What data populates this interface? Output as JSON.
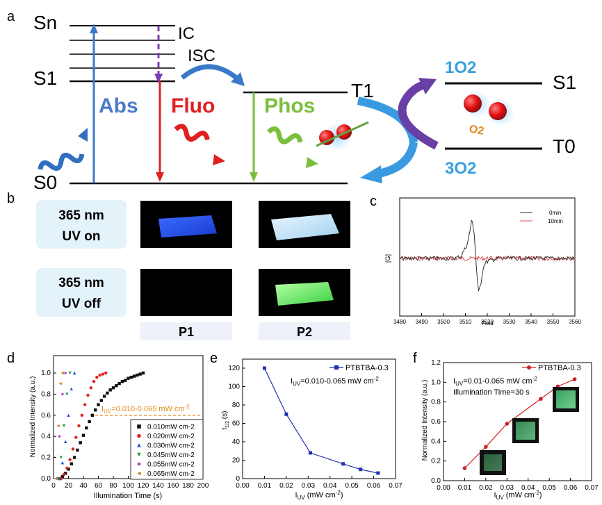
{
  "panel_labels": {
    "a": "a",
    "b": "b",
    "c": "c",
    "d": "d",
    "e": "e",
    "f": "f"
  },
  "jablonski": {
    "sn": "Sn",
    "s1": "S1",
    "s0": "S0",
    "t1": "T1",
    "ic": "IC",
    "isc": "ISC",
    "abs": "Abs",
    "fluo": "Fluo",
    "phos": "Phos",
    "singlet_o2": "1O2",
    "triplet_o2": "3O2",
    "o2_s1": "S1",
    "o2_t0": "T0",
    "o2_small": "O2",
    "colors": {
      "abs": "#4a7cc7",
      "fluo": "#e02020",
      "phos": "#7bbf3a",
      "ic": "#7b3fb5",
      "isc": "#3a78c9",
      "orange": "#e08a1a"
    }
  },
  "panel_b": {
    "row1_line1": "365 nm",
    "row1_line2": "UV  on",
    "row2_line1": "365 nm",
    "row2_line2": "UV off",
    "col1": "P1",
    "col2": "P2"
  },
  "chart_data": [
    {
      "panel": "c",
      "type": "line",
      "xlabel": "Field",
      "ylabel": "[G]",
      "xlim": [
        3480,
        3560
      ],
      "xticks": [
        "3480",
        "3490",
        "3500",
        "3510",
        "3520",
        "3530",
        "3540",
        "3550",
        "3560"
      ],
      "series": [
        {
          "name": "0min",
          "color": "#333333",
          "x": [
            3480,
            3505,
            3508,
            3511,
            3513,
            3514,
            3515,
            3516,
            3517,
            3518,
            3519,
            3521,
            3525,
            3560
          ],
          "y": [
            0,
            0,
            0.05,
            0.35,
            0.9,
            0.6,
            -0.2,
            -0.8,
            -0.6,
            -0.25,
            -0.1,
            -0.05,
            0,
            0
          ]
        },
        {
          "name": "10min",
          "color": "#e05050",
          "x": [
            3480,
            3560
          ],
          "y": [
            0,
            0
          ]
        }
      ],
      "legend": "top-right"
    },
    {
      "panel": "d",
      "type": "scatter",
      "xlabel": "Illumination Time (s)",
      "ylabel": "Normalized Intensity (a.u.)",
      "xlim": [
        0,
        200
      ],
      "ylim": [
        0,
        1.0
      ],
      "xticks": [
        "0",
        "20",
        "40",
        "60",
        "80",
        "100",
        "120",
        "140",
        "160",
        "180",
        "200"
      ],
      "yticks": [
        "0.0",
        "0.2",
        "0.4",
        "0.6",
        "0.8",
        "1.0"
      ],
      "annotation": "I",
      "annotation_sub": "UV",
      "annotation_rest": "=0.010-0.065 mW cm",
      "annotation_sup": "-2",
      "series": [
        {
          "name": "0.010mW cm-2",
          "color": "#111111",
          "marker": "square",
          "x": [
            8,
            12,
            16,
            20,
            24,
            28,
            32,
            36,
            40,
            44,
            48,
            52,
            56,
            60,
            64,
            68,
            72,
            76,
            80,
            84,
            88,
            92,
            96,
            100,
            104,
            108,
            112,
            116,
            120
          ],
          "y": [
            0,
            0.02,
            0.05,
            0.09,
            0.14,
            0.2,
            0.27,
            0.34,
            0.41,
            0.48,
            0.54,
            0.6,
            0.65,
            0.7,
            0.74,
            0.78,
            0.81,
            0.84,
            0.86,
            0.88,
            0.9,
            0.92,
            0.93,
            0.95,
            0.96,
            0.97,
            0.98,
            0.99,
            1.0
          ]
        },
        {
          "name": "0.020mW cm-2",
          "color": "#e02020",
          "marker": "circle",
          "x": [
            10,
            14,
            18,
            22,
            26,
            30,
            34,
            38,
            42,
            46,
            50,
            54,
            58,
            62,
            66,
            70
          ],
          "y": [
            0,
            0.04,
            0.1,
            0.18,
            0.28,
            0.39,
            0.5,
            0.6,
            0.7,
            0.79,
            0.86,
            0.92,
            0.96,
            0.98,
            0.99,
            1.0
          ]
        },
        {
          "name": "0.030mW cm-2",
          "color": "#2050d0",
          "marker": "triangle-up",
          "x": [
            8,
            12,
            16,
            20,
            24,
            28
          ],
          "y": [
            0,
            0.15,
            0.35,
            0.6,
            0.85,
            1.0
          ]
        },
        {
          "name": "0.045mW cm-2",
          "color": "#20a040",
          "marker": "triangle-down",
          "x": [
            6,
            10,
            14,
            18,
            22
          ],
          "y": [
            0,
            0.2,
            0.5,
            0.8,
            1.0
          ]
        },
        {
          "name": "0.055mW cm-2",
          "color": "#b040c0",
          "marker": "diamond",
          "x": [
            4,
            8,
            12,
            16
          ],
          "y": [
            0,
            0.4,
            0.8,
            1.0
          ]
        },
        {
          "name": "0.065mW cm-2",
          "color": "#d08020",
          "marker": "triangle-left",
          "x": [
            3,
            6,
            9,
            12
          ],
          "y": [
            0,
            0.5,
            0.9,
            1.0
          ]
        }
      ]
    },
    {
      "panel": "e",
      "type": "line",
      "xlabel": "I",
      "xlabel_sub": "UV",
      "xlabel_rest": " (mW cm",
      "xlabel_sup": "-2",
      "xlabel_end": ")",
      "ylabel": "t",
      "ylabel_sub": "1/2",
      "ylabel_rest": " (s)",
      "xlim": [
        0.0,
        0.07
      ],
      "ylim": [
        0,
        130
      ],
      "xticks": [
        "0.00",
        "0.01",
        "0.02",
        "0.03",
        "0.04",
        "0.05",
        "0.06",
        "0.07"
      ],
      "yticks": [
        "0",
        "20",
        "40",
        "60",
        "80",
        "100",
        "120"
      ],
      "annotation": "I",
      "annotation_sub": "UV",
      "annotation_rest": "=0.010-0.065 mW cm",
      "annotation_sup": "-2",
      "series": [
        {
          "name": "PTBTBA-0.3",
          "color": "#2030b0",
          "marker": "square",
          "x": [
            0.01,
            0.02,
            0.031,
            0.046,
            0.054,
            0.062
          ],
          "y": [
            120,
            70,
            28,
            16,
            10,
            6
          ]
        }
      ],
      "legend": "top-right"
    },
    {
      "panel": "f",
      "type": "line",
      "xlabel": "I",
      "xlabel_sub": "UV",
      "xlabel_rest": " (mW cm",
      "xlabel_sup": "-2",
      "xlabel_end": ")",
      "ylabel": "Normalized Intensity (a.u.)",
      "xlim": [
        0.0,
        0.07
      ],
      "ylim": [
        0,
        1.2
      ],
      "xticks": [
        "0.00",
        "0.01",
        "0.02",
        "0.03",
        "0.04",
        "0.05",
        "0.06",
        "0.07"
      ],
      "yticks": [
        "0.0",
        "0.2",
        "0.4",
        "0.6",
        "0.8",
        "1.0",
        "1.2"
      ],
      "annotation": "I",
      "annotation_sub": "UV",
      "annotation_rest": "=0.01-0.065 mW cm",
      "annotation_sup": "-2",
      "annotation2": "Illumination Time=30 s",
      "series": [
        {
          "name": "PTBTBA-0.3",
          "color": "#d02020",
          "marker": "circle",
          "x": [
            0.01,
            0.02,
            0.03,
            0.046,
            0.054,
            0.062
          ],
          "y": [
            0.0,
            0.24,
            0.5,
            0.78,
            0.92,
            1.0
          ]
        }
      ],
      "legend": "top-right"
    }
  ]
}
